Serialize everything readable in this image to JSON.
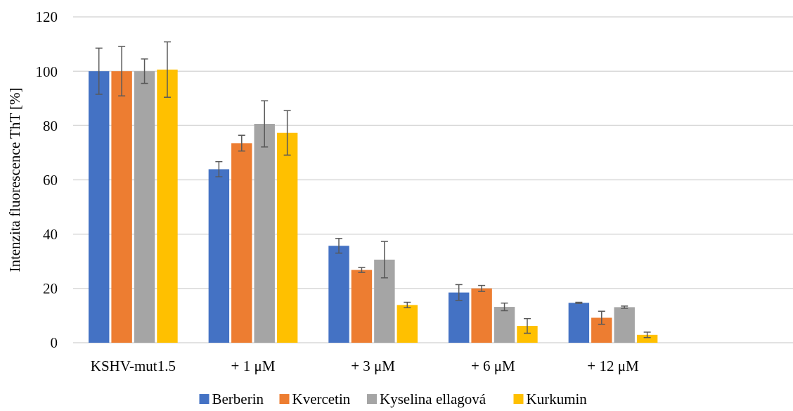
{
  "chart_data": {
    "type": "bar",
    "ylabel": "Intenzita fluorescence ThT [%]",
    "categories": [
      "KSHV-mut1.5",
      "+ 1 μM",
      "+ 3 μM",
      "+ 6 μM",
      "+ 12 μM",
      null
    ],
    "series": [
      {
        "name": "Berberin",
        "color": "#4472c4",
        "values": [
          100,
          63.9,
          35.7,
          18.5,
          14.7,
          null
        ],
        "errors": [
          8.5,
          2.8,
          2.7,
          2.9,
          0.2,
          null
        ]
      },
      {
        "name": "Kvercetin",
        "color": "#ed7d31",
        "values": [
          100,
          73.5,
          26.8,
          20.0,
          9.2,
          null
        ],
        "errors": [
          9.1,
          2.9,
          0.9,
          1.1,
          2.4,
          null
        ]
      },
      {
        "name": "Kyselina ellagová",
        "color": "#a5a5a5",
        "values": [
          100,
          80.6,
          30.6,
          13.2,
          13.1,
          null
        ],
        "errors": [
          4.5,
          8.5,
          6.7,
          1.4,
          0.4,
          null
        ]
      },
      {
        "name": "Kurkumin",
        "color": "#ffc000",
        "values": [
          100.6,
          77.3,
          13.9,
          6.2,
          2.9,
          null
        ],
        "errors": [
          10.2,
          8.2,
          1.0,
          2.7,
          1.0,
          null
        ]
      }
    ],
    "ylim": [
      0,
      120
    ],
    "yticks": [
      0,
      20,
      40,
      60,
      80,
      100,
      120
    ],
    "grid": "y",
    "legend": "bottom"
  }
}
